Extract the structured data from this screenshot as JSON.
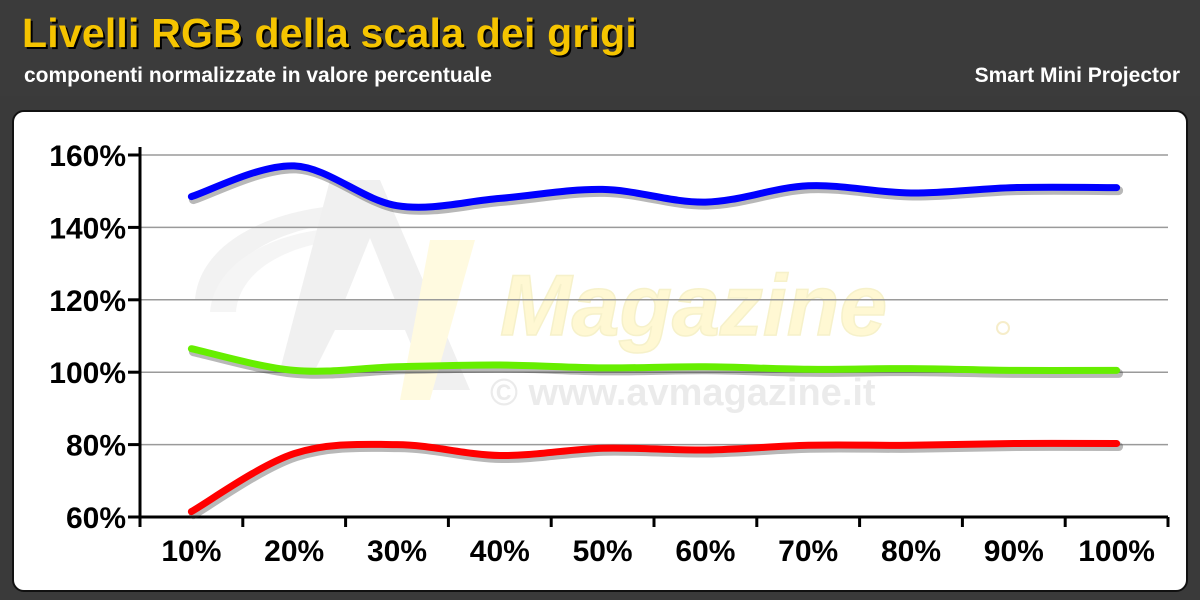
{
  "header": {
    "title": "Livelli RGB della scala dei grigi",
    "subtitle": "componenti normalizzate in valore percentuale",
    "device": "Smart Mini Projector"
  },
  "watermark": {
    "brand": "Magazine",
    "url": "© www.avmagazine.it"
  },
  "chart_data": {
    "type": "line",
    "title": "Livelli RGB della scala dei grigi",
    "subtitle": "componenti normalizzate in valore percentuale",
    "categories": [
      "10%",
      "20%",
      "30%",
      "40%",
      "50%",
      "60%",
      "70%",
      "80%",
      "90%",
      "100%"
    ],
    "y_ticks": [
      "60%",
      "80%",
      "100%",
      "120%",
      "140%",
      "160%"
    ],
    "ylim": [
      60,
      160
    ],
    "grid": true,
    "series": [
      {
        "color": "#0000ff",
        "values": [
          148.5,
          157,
          146,
          148,
          150.5,
          147,
          151.5,
          149.5,
          151,
          151
        ]
      },
      {
        "color": "#ff0000",
        "values": [
          61.5,
          77.5,
          80,
          77,
          79,
          78.5,
          79.8,
          79.8,
          80.3,
          80.3
        ]
      },
      {
        "color": "#66ee00",
        "values": [
          106.5,
          100.5,
          101.5,
          102,
          101.2,
          101.5,
          100.8,
          101,
          100.5,
          100.5
        ]
      }
    ]
  }
}
